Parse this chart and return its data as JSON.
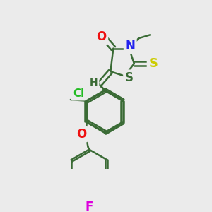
{
  "bg_color": "#ebebeb",
  "bond_color": "#3a6b35",
  "bond_width": 1.8,
  "atom_colors": {
    "O": "#ee1111",
    "N": "#2222ee",
    "S_thioxo": "#cccc00",
    "S_ring": "#3a6b35",
    "Cl": "#22bb22",
    "O_ether": "#ee1111",
    "F": "#dd00dd",
    "H": "#3a6b35",
    "C": "#3a6b35"
  }
}
